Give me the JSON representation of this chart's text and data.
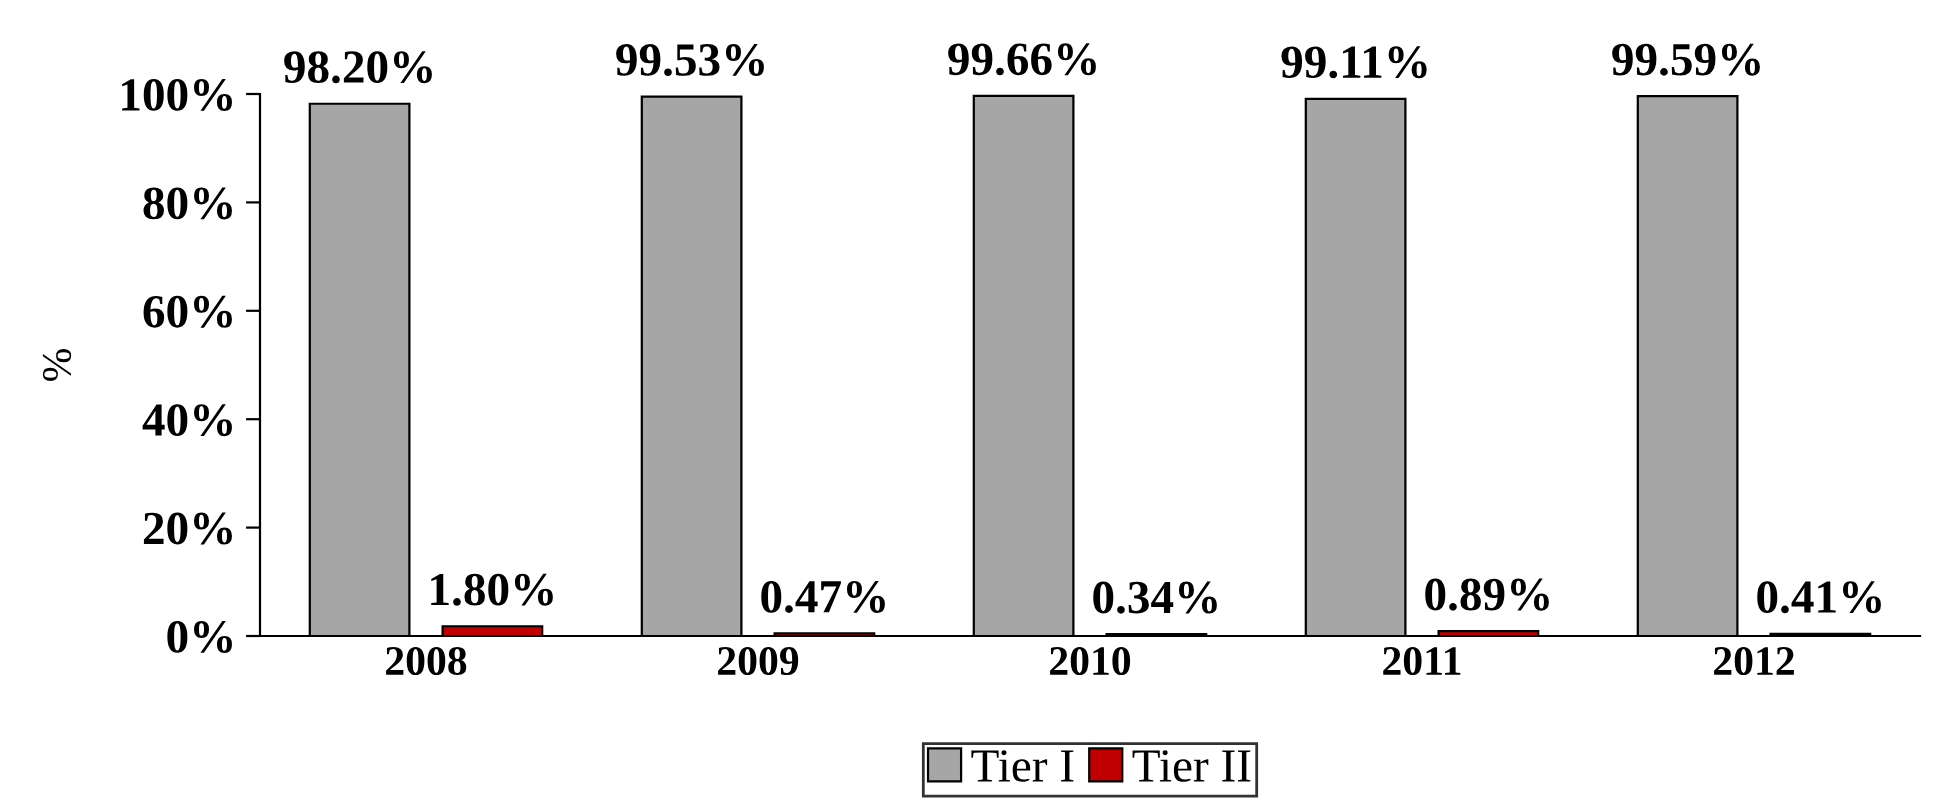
{
  "chart_data": {
    "type": "bar",
    "ylabel": "%",
    "categories": [
      "2008",
      "2009",
      "2010",
      "2011",
      "2012"
    ],
    "series": [
      {
        "name": "Tier I",
        "color": "#a6a6a6",
        "values": [
          98.2,
          99.53,
          99.66,
          99.11,
          99.59
        ],
        "value_labels": [
          "98.20%",
          "99.53%",
          "99.66%",
          "99.11%",
          "99.59%"
        ]
      },
      {
        "name": "Tier II",
        "color": "#c00000",
        "values": [
          1.8,
          0.47,
          0.34,
          0.89,
          0.41
        ],
        "value_labels": [
          "1.80%",
          "0.47%",
          "0.34%",
          "0.89%",
          "0.41%"
        ]
      }
    ],
    "ylim": [
      0,
      100
    ],
    "yticks": [
      {
        "value": 0,
        "label": "0%"
      },
      {
        "value": 20,
        "label": "20%"
      },
      {
        "value": 40,
        "label": "40%"
      },
      {
        "value": 60,
        "label": "60%"
      },
      {
        "value": 80,
        "label": "80%"
      },
      {
        "value": 100,
        "label": "100%"
      }
    ],
    "grid": false,
    "legend": "bottom"
  }
}
